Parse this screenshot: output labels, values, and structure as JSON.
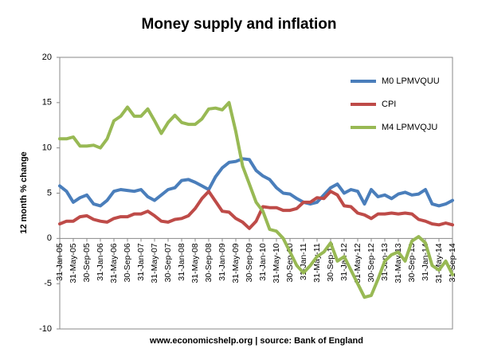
{
  "chart_data": {
    "type": "line",
    "title": "Money supply and inflation",
    "ylabel": "12 month % change",
    "caption": "www.economicshelp.org | source: Bank of England",
    "categories": [
      "31-Jan-05",
      null,
      "31-May-05",
      null,
      "30-Sep-05",
      null,
      "31-Jan-06",
      null,
      "31-May-06",
      null,
      "30-Sep-06",
      null,
      "31-Jan-07",
      null,
      "31-May-07",
      null,
      "30-Sep-07",
      null,
      "31-Jan-08",
      null,
      "31-May-08",
      null,
      "30-Sep-08",
      null,
      "31-Jan-09",
      null,
      "31-May-09",
      null,
      "30-Sep-09",
      null,
      "31-Jan-10",
      null,
      "31-May-10",
      null,
      "30-Sep-10",
      null,
      "31-Jan-11",
      null,
      "31-May-11",
      null,
      "30-Sep-11",
      null,
      "31-Jan-12",
      null,
      "31-May-12",
      null,
      "30-Sep-12",
      null,
      "31-Jan-13",
      null,
      "31-May-13",
      null,
      "30-Sep-13",
      null,
      "31-Jan-14",
      null,
      "31-May-14",
      null,
      "31-Sep-14"
    ],
    "series": [
      {
        "name": "M0 LPMVQUU",
        "color": "#4a7ebb",
        "values": [
          5.8,
          5.2,
          4.0,
          4.5,
          4.8,
          3.8,
          3.6,
          4.2,
          5.2,
          5.4,
          5.3,
          5.2,
          5.4,
          4.6,
          4.2,
          4.8,
          5.4,
          5.6,
          6.4,
          6.5,
          6.2,
          5.8,
          5.4,
          6.8,
          7.8,
          8.4,
          8.5,
          8.8,
          8.7,
          7.5,
          6.9,
          6.5,
          5.6,
          5.0,
          4.9,
          4.4,
          4.0,
          3.8,
          4.0,
          4.8,
          5.6,
          6.0,
          5.0,
          5.4,
          5.2,
          3.8,
          5.4,
          4.6,
          4.8,
          4.4,
          4.9,
          5.1,
          4.8,
          4.9,
          5.4,
          3.8,
          3.6,
          3.8,
          4.2
        ]
      },
      {
        "name": "CPI",
        "color": "#be4b48",
        "values": [
          1.6,
          1.9,
          1.9,
          2.4,
          2.5,
          2.1,
          1.9,
          1.8,
          2.2,
          2.4,
          2.4,
          2.7,
          2.7,
          3.0,
          2.5,
          1.9,
          1.8,
          2.1,
          2.2,
          2.5,
          3.3,
          4.4,
          5.2,
          4.1,
          3.0,
          2.9,
          2.2,
          1.8,
          1.1,
          1.9,
          3.5,
          3.4,
          3.4,
          3.1,
          3.1,
          3.3,
          4.0,
          4.0,
          4.5,
          4.4,
          5.2,
          4.8,
          3.6,
          3.5,
          2.8,
          2.6,
          2.2,
          2.7,
          2.7,
          2.8,
          2.7,
          2.8,
          2.7,
          2.1,
          1.9,
          1.6,
          1.5,
          1.7,
          1.5
        ]
      },
      {
        "name": "M4 LPMVQJU",
        "color": "#98b954",
        "values": [
          11.0,
          11.0,
          11.2,
          10.2,
          10.2,
          10.3,
          10.0,
          11.0,
          13.0,
          13.5,
          14.5,
          13.5,
          13.5,
          14.3,
          13.0,
          11.6,
          12.8,
          13.6,
          12.8,
          12.6,
          12.6,
          13.2,
          14.3,
          14.4,
          14.2,
          15.0,
          11.8,
          8.0,
          6.0,
          4.0,
          3.0,
          1.0,
          0.8,
          0.0,
          -1.5,
          -3.0,
          -3.8,
          -3.0,
          -2.0,
          -1.5,
          -0.5,
          -2.5,
          -2.0,
          -3.5,
          -5.0,
          -6.5,
          -6.3,
          -4.5,
          -2.5,
          -1.8,
          -1.5,
          -2.5,
          -0.3,
          0.2,
          -0.5,
          -3.0,
          -3.5,
          -2.5,
          -4.0
        ]
      }
    ],
    "ylim": [
      -10,
      20
    ],
    "yticks": [
      -10,
      -5,
      0,
      5,
      10,
      15,
      20
    ],
    "grid": false,
    "legend": "upper right"
  }
}
